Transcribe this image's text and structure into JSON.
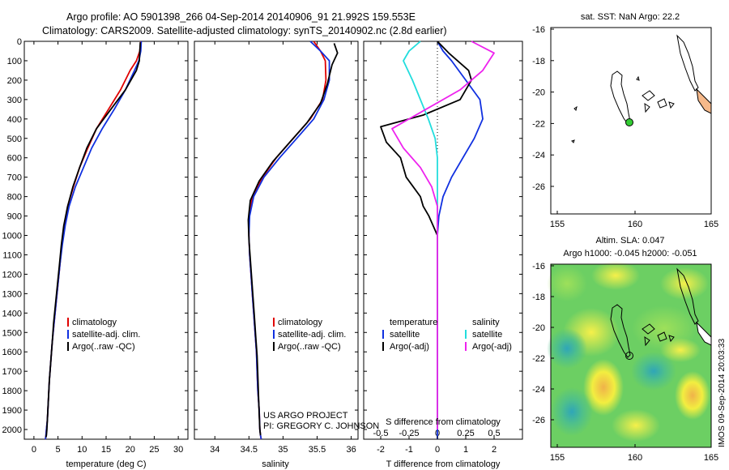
{
  "header": {
    "line1": "Argo profile: AO 5901398_266 04-Sep-2014 20140906_91 21.992S 159.553E",
    "line2": "Climatology: CARS2009. Satellite-adjusted climatology: synTS_20140902.nc (2.8d earlier)"
  },
  "colors": {
    "climatology": "#e00000",
    "satellite": "#1030e0",
    "argo": "#000000",
    "sat_salinity": "#22dddd",
    "argo_salinity": "#ee22ee",
    "land_fill": "#f6b98a",
    "argo_marker": "#33cc33"
  },
  "credit": {
    "line1": "US ARGO PROJECT",
    "line2": "PI: GREGORY C. JOHNSON"
  },
  "watermark": "IMOS 09-Sep-2014 20:03:33",
  "chart_data": [
    {
      "type": "line",
      "xlabel": "temperature (deg C)",
      "ylabel": "",
      "xlim": [
        -2,
        32
      ],
      "ylim": [
        2050,
        0
      ],
      "xticks": [
        0,
        5,
        10,
        15,
        20,
        25,
        30
      ],
      "yticks": [
        0,
        100,
        200,
        300,
        400,
        500,
        600,
        700,
        800,
        900,
        1000,
        1100,
        1200,
        1300,
        1400,
        1500,
        1600,
        1700,
        1800,
        1900,
        2000
      ],
      "legend": [
        "climatology",
        "satellite-adj. clim.",
        "Argo(..raw -QC)"
      ],
      "series": [
        {
          "name": "climatology",
          "color": "#e00000",
          "x": [
            22.2,
            22.0,
            21.3,
            20.0,
            18.0,
            15.5,
            13.0,
            11.2,
            9.5,
            8.2,
            7.0,
            6.3,
            5.8,
            5.4,
            5.0,
            4.6,
            4.2,
            3.8,
            3.5,
            3.2,
            3.0,
            2.8,
            2.6,
            2.5,
            2.4
          ],
          "y": [
            0,
            50,
            100,
            150,
            250,
            350,
            450,
            550,
            650,
            750,
            850,
            950,
            1050,
            1150,
            1250,
            1350,
            1450,
            1550,
            1650,
            1750,
            1850,
            1950,
            2000,
            2030,
            2050
          ]
        },
        {
          "name": "satellite-adj. clim.",
          "color": "#1030e0",
          "x": [
            22.3,
            22.2,
            21.8,
            20.9,
            19.0,
            16.7,
            14.2,
            12.0,
            10.3,
            8.6,
            7.3,
            6.5,
            5.9,
            5.4,
            5.0,
            4.6,
            4.2,
            3.8,
            3.5,
            3.2,
            3.0,
            2.8,
            2.6,
            2.5,
            2.4
          ],
          "y": [
            0,
            50,
            100,
            150,
            250,
            350,
            450,
            550,
            650,
            750,
            850,
            950,
            1050,
            1150,
            1250,
            1350,
            1450,
            1550,
            1650,
            1750,
            1850,
            1950,
            2000,
            2030,
            2050
          ]
        },
        {
          "name": "Argo(..raw -QC)",
          "color": "#000000",
          "x": [
            22.1,
            22.0,
            21.9,
            21.3,
            19.0,
            16.0,
            13.0,
            11.0,
            9.5,
            8.1,
            7.0,
            6.2,
            5.7,
            5.3,
            4.9,
            4.5,
            4.1,
            3.8,
            3.5,
            3.2,
            3.0,
            2.8,
            2.7,
            2.6,
            2.5
          ],
          "y": [
            5,
            50,
            100,
            150,
            250,
            350,
            450,
            550,
            650,
            750,
            850,
            950,
            1050,
            1150,
            1250,
            1350,
            1450,
            1550,
            1650,
            1750,
            1850,
            1950,
            2000,
            2030,
            2040
          ]
        }
      ]
    },
    {
      "type": "line",
      "xlabel": "salinity",
      "ylabel": "",
      "xlim": [
        33.7,
        36.1
      ],
      "ylim": [
        2050,
        0
      ],
      "xticks": [
        34,
        34.5,
        35,
        35.5,
        36
      ],
      "legend": [
        "climatology",
        "satellite-adj. clim.",
        "Argo(..raw -QC)"
      ],
      "series": [
        {
          "name": "climatology",
          "color": "#e00000",
          "x": [
            35.45,
            35.55,
            35.62,
            35.63,
            35.58,
            35.4,
            35.15,
            34.9,
            34.7,
            34.55,
            34.5,
            34.5,
            34.51,
            34.53,
            34.55,
            34.57,
            34.59,
            34.61,
            34.62,
            34.63,
            34.65,
            34.66,
            34.67,
            34.68
          ],
          "y": [
            0,
            50,
            100,
            200,
            300,
            400,
            500,
            600,
            700,
            800,
            900,
            1000,
            1100,
            1200,
            1300,
            1400,
            1500,
            1600,
            1700,
            1800,
            1900,
            2000,
            2030,
            2050
          ]
        },
        {
          "name": "satellite-adj. clim.",
          "color": "#1030e0",
          "x": [
            35.4,
            35.55,
            35.68,
            35.68,
            35.6,
            35.45,
            35.2,
            34.95,
            34.72,
            34.57,
            34.51,
            34.5,
            34.51,
            34.53,
            34.55,
            34.57,
            34.59,
            34.61,
            34.62,
            34.63,
            34.65,
            34.66,
            34.67,
            34.68
          ],
          "y": [
            0,
            50,
            100,
            200,
            300,
            400,
            500,
            600,
            700,
            800,
            900,
            1000,
            1100,
            1200,
            1300,
            1400,
            1500,
            1600,
            1700,
            1800,
            1900,
            2000,
            2030,
            2050
          ]
        },
        {
          "name": "Argo(..raw -QC)",
          "color": "#000000",
          "x": [
            35.75,
            35.8,
            35.72,
            35.65,
            35.55,
            35.35,
            35.1,
            34.85,
            34.65,
            34.52,
            34.49,
            34.5,
            34.52,
            34.54,
            34.56,
            34.58,
            34.6,
            34.62,
            34.63,
            34.64,
            34.65,
            34.66,
            34.67
          ],
          "y": [
            10,
            60,
            120,
            220,
            320,
            420,
            520,
            620,
            720,
            820,
            920,
            1020,
            1120,
            1220,
            1320,
            1420,
            1520,
            1620,
            1720,
            1820,
            1920,
            2000,
            2030
          ]
        }
      ]
    },
    {
      "type": "line",
      "xlabel": "T difference from climatology",
      "xlabel2": "S difference from climatology",
      "ylabel": "",
      "xlim": [
        -2.6,
        3.0
      ],
      "ylim": [
        2050,
        0
      ],
      "xticks": [
        -2,
        -1,
        0,
        1,
        2
      ],
      "xticks_s": [
        -0.5,
        -0.25,
        0,
        0.25,
        0.5
      ],
      "legend_titles": [
        "temperature",
        "salinity"
      ],
      "legend": [
        "satellite",
        "Argo(-adj)",
        "satellite",
        "Argo(-adj)"
      ],
      "series": [
        {
          "name": "satellite",
          "color": "#1030e0",
          "x": [
            0.0,
            0.2,
            0.5,
            1.0,
            1.5,
            1.6,
            1.3,
            0.9,
            0.5,
            0.2,
            0.05,
            0.0,
            0.0,
            0.0,
            0.0,
            0.0,
            0.0,
            0.0,
            0.0,
            0.0
          ],
          "y": [
            0,
            50,
            100,
            200,
            300,
            400,
            500,
            600,
            700,
            800,
            900,
            1000,
            1100,
            1200,
            1400,
            1600,
            1800,
            1900,
            2000,
            2050
          ]
        },
        {
          "name": "Argo(-adj)",
          "color": "#000000",
          "x": [
            0.0,
            0.4,
            1.1,
            1.2,
            0.8,
            -0.5,
            -2.0,
            -1.8,
            -1.3,
            -1.1,
            -0.6,
            -0.5,
            -0.3,
            0.0,
            0.0,
            0.0,
            0.0,
            0.0,
            0.0
          ],
          "y": [
            0,
            60,
            150,
            200,
            300,
            380,
            440,
            520,
            600,
            700,
            800,
            850,
            900,
            1000,
            1200,
            1400,
            1600,
            1800,
            2000
          ]
        },
        {
          "name": "satellite (salinity)",
          "color": "#22dddd",
          "x": [
            -0.15,
            -0.25,
            -0.3,
            -0.22,
            -0.15,
            -0.08,
            -0.02,
            0.0,
            0.0,
            0.0,
            0.0,
            0.0,
            0.0,
            0.0,
            0.0
          ],
          "y": [
            0,
            50,
            100,
            200,
            300,
            400,
            500,
            600,
            700,
            800,
            900,
            1000,
            1200,
            1600,
            2000
          ]
        },
        {
          "name": "Argo(-adj) (salinity)",
          "color": "#ee22ee",
          "x": [
            0.3,
            0.5,
            0.4,
            0.2,
            -0.1,
            -0.4,
            -0.3,
            -0.15,
            -0.05,
            0.0,
            0.0,
            0.0,
            0.0
          ],
          "y": [
            0,
            60,
            150,
            250,
            350,
            450,
            550,
            650,
            750,
            850,
            950,
            1200,
            2000
          ]
        }
      ]
    }
  ],
  "maps": {
    "sst": {
      "title": "sat. SST: NaN Argo: 22.2",
      "xticks": [
        "155",
        "160",
        "165"
      ],
      "yticks": [
        "-16",
        "-18",
        "-20",
        "-22",
        "-24",
        "-26"
      ]
    },
    "sla": {
      "title1": "Altim. SLA: 0.047",
      "title2": "Argo h1000: -0.045 h2000: -0.051",
      "xticks": [
        "155",
        "160",
        "165"
      ],
      "yticks": [
        "-16",
        "-18",
        "-20",
        "-22",
        "-24",
        "-26"
      ]
    }
  }
}
